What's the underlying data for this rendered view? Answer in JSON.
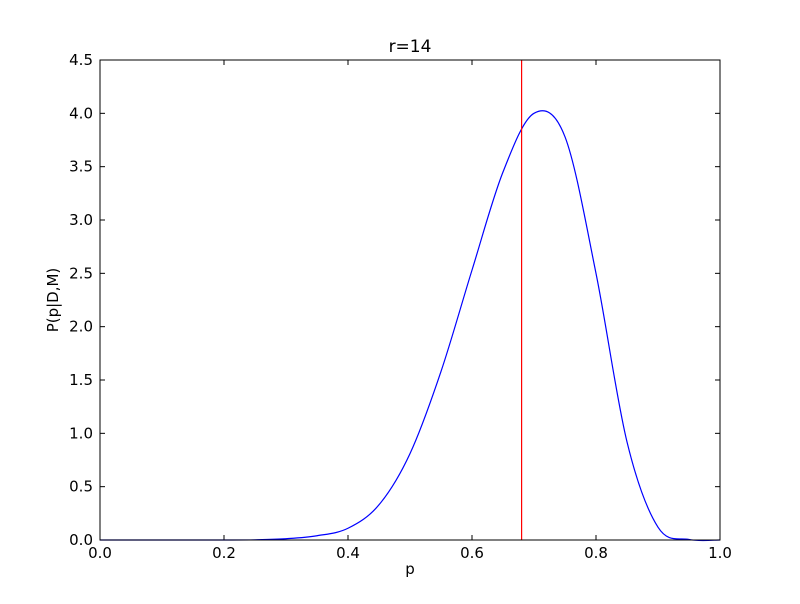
{
  "chart_data": {
    "type": "line",
    "title": "r=14",
    "xlabel": "p",
    "ylabel": "P(p|D,M)",
    "xlim": [
      0.0,
      1.0
    ],
    "ylim": [
      0.0,
      4.5
    ],
    "xticks": [
      0.0,
      0.2,
      0.4,
      0.6,
      0.8,
      1.0
    ],
    "xtick_labels": [
      "0.0",
      "0.2",
      "0.4",
      "0.6",
      "0.8",
      "1.0"
    ],
    "yticks": [
      0.0,
      0.5,
      1.0,
      1.5,
      2.0,
      2.5,
      3.0,
      3.5,
      4.0,
      4.5
    ],
    "ytick_labels": [
      "0.0",
      "0.5",
      "1.0",
      "1.5",
      "2.0",
      "2.5",
      "3.0",
      "3.5",
      "4.0",
      "4.5"
    ],
    "grid": false,
    "legend": "none",
    "series": [
      {
        "color": "#0000ff",
        "x": [
          0.0,
          0.05,
          0.1,
          0.15,
          0.2,
          0.25,
          0.3,
          0.35,
          0.4,
          0.45,
          0.5,
          0.55,
          0.6,
          0.65,
          0.7,
          0.75,
          0.8,
          0.85,
          0.9,
          0.95,
          1.0
        ],
        "y": [
          0.0,
          0.0,
          0.0,
          0.0,
          0.0,
          0.002,
          0.012,
          0.04,
          0.11,
          0.33,
          0.81,
          1.58,
          2.53,
          3.45,
          4.0,
          3.78,
          2.5,
          0.92,
          0.12,
          0.005,
          0.0
        ]
      }
    ],
    "vlines": [
      {
        "x": 0.68,
        "color": "#ff0000"
      }
    ]
  }
}
